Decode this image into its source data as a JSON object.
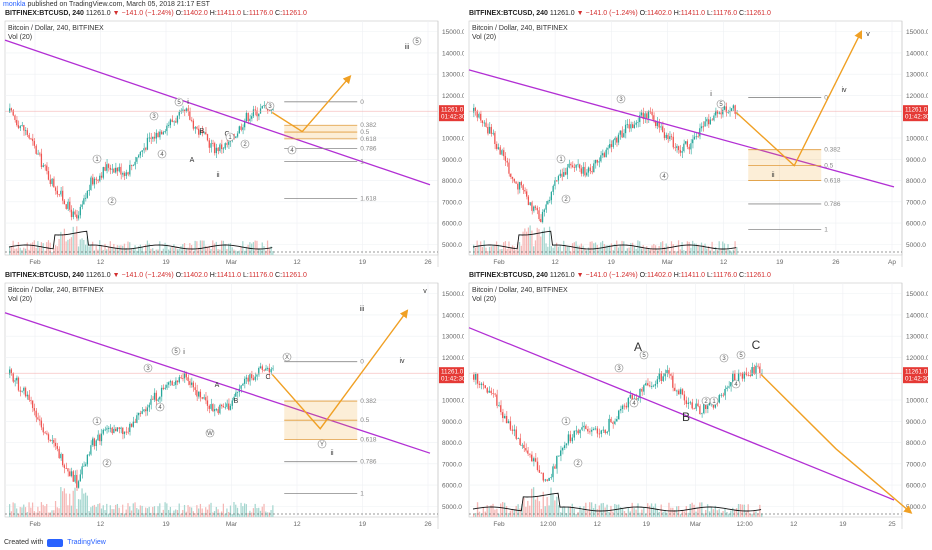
{
  "header": {
    "user": "monkla",
    "published": "published on TradingView.com, March 05, 2018 21:17 EST"
  },
  "footer": {
    "created_with": "Created with",
    "brand": "TradingView"
  },
  "symbol_bar": {
    "symbol": "BITFINEX:BTCUSD, 240",
    "price": "11261.0",
    "change": "−141.0 (−1.24%)",
    "o_label": "O:",
    "o_val": "11402.0",
    "h_label": "H:",
    "h_val": "11411.0",
    "l_label": "L:",
    "l_val": "11176.0",
    "c_label": "C:",
    "c_val": "11261.0"
  },
  "chart_title": "Bitcoin / Dollar, 240, BITFINEX",
  "vol_label": "Vol (20)",
  "price_tag": "11261.0",
  "time_tag": "01:42:30",
  "colors": {
    "up": "#26a69a",
    "down": "#ef5350",
    "trend": "#b22fd4",
    "proj": "#f0a024",
    "grid": "#eef0f3"
  },
  "chart_data": [
    {
      "type": "line",
      "panel": "top-left",
      "ylim": [
        4500,
        15500
      ],
      "y_ticks": [
        "15000.0",
        "14000.0",
        "13000.0",
        "12000.0",
        "11000.0",
        "10000.0",
        "9000.0",
        "8000.0",
        "7000.0",
        "6000.0",
        "5000.0"
      ],
      "x_ticks": [
        "Feb",
        "12",
        "19",
        "Mar",
        "12",
        "19",
        "26"
      ],
      "fib_levels": [
        {
          "label": "0"
        },
        {
          "label": "0.382"
        },
        {
          "label": "0.5"
        },
        {
          "label": "0.618"
        },
        {
          "label": "0.786"
        },
        {
          "label": "1"
        },
        {
          "label": "1.618"
        }
      ],
      "wave_labels": [
        "1",
        "2",
        "3",
        "4",
        "5",
        "i",
        "A",
        "B",
        "C",
        "ii",
        "1",
        "2",
        "3",
        "4",
        "iii",
        "5"
      ]
    },
    {
      "type": "line",
      "panel": "top-right",
      "ylim": [
        4500,
        15500
      ],
      "y_ticks": [
        "15000.0",
        "14000.0",
        "13000.0",
        "12000.0",
        "11000.0",
        "10000.0",
        "9000.0",
        "8000.0",
        "7000.0",
        "6000.0",
        "5000.0"
      ],
      "x_ticks": [
        "Feb",
        "12",
        "19",
        "Mar",
        "12",
        "19",
        "26",
        "Ap"
      ],
      "fib_levels": [
        {
          "label": "0"
        },
        {
          "label": "0.382"
        },
        {
          "label": "0.5"
        },
        {
          "label": "0.618"
        },
        {
          "label": "0.786"
        },
        {
          "label": "1"
        }
      ],
      "wave_labels": [
        "1",
        "2",
        "3",
        "4",
        "5",
        "i",
        "ii",
        "iv",
        "v"
      ]
    },
    {
      "type": "line",
      "panel": "bottom-left",
      "ylim": [
        4500,
        15500
      ],
      "y_ticks": [
        "15000.0",
        "14000.0",
        "13000.0",
        "12000.0",
        "11000.0",
        "10000.0",
        "9000.0",
        "8000.0",
        "7000.0",
        "6000.0",
        "5000.0"
      ],
      "x_ticks": [
        "Feb",
        "12",
        "19",
        "Mar",
        "12",
        "19",
        "26"
      ],
      "fib_levels": [
        {
          "label": "0"
        },
        {
          "label": "0.382"
        },
        {
          "label": "0.5"
        },
        {
          "label": "0.618"
        },
        {
          "label": "0.786"
        },
        {
          "label": "1"
        }
      ],
      "wave_labels": [
        "1",
        "2",
        "3",
        "4",
        "5",
        "i",
        "W",
        "A",
        "B",
        "C",
        "X",
        "Y",
        "ii",
        "iii",
        "iv",
        "v"
      ]
    },
    {
      "type": "line",
      "panel": "bottom-right",
      "ylim": [
        4500,
        15500
      ],
      "y_ticks": [
        "15000.0",
        "14000.0",
        "13000.0",
        "12000.0",
        "11000.0",
        "10000.0",
        "9000.0",
        "8000.0",
        "7000.0",
        "6000.0",
        "5000.0"
      ],
      "x_ticks": [
        "Feb",
        "12:00",
        "12",
        "19",
        "Mar",
        "12:00",
        "12",
        "19",
        "25"
      ],
      "wave_labels": [
        "1",
        "2",
        "3",
        "4",
        "5",
        "A",
        "B",
        "C",
        "1",
        "2",
        "3",
        "4",
        "5"
      ]
    }
  ]
}
